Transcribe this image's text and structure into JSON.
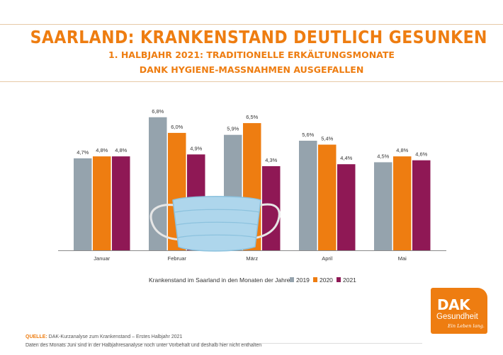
{
  "header": {
    "title": "SAARLAND: KRANKENSTAND DEUTLICH GESUNKEN",
    "subtitle_line1": "1. HALBJAHR 2021: TRADITIONELLE ERKÄLTUNGSMONATE",
    "subtitle_line2": "DANK HYGIENE-MASSNAHMEN AUSGEFALLEN"
  },
  "colors": {
    "accent": "#ee7d11",
    "series_2019": "#95a3ad",
    "series_2020": "#ee7d11",
    "series_2021": "#8f1855",
    "mask": "#aed6ec"
  },
  "chart_data": {
    "type": "bar",
    "categories": [
      "Januar",
      "Februar",
      "März",
      "April",
      "Mai"
    ],
    "series": [
      {
        "name": "2019",
        "values": [
          4.7,
          6.8,
          5.9,
          5.6,
          4.5
        ],
        "labels": [
          "4,7%",
          "6,8%",
          "5,9%",
          "5,6%",
          "4,5%"
        ]
      },
      {
        "name": "2020",
        "values": [
          4.8,
          6.0,
          6.5,
          5.4,
          4.8
        ],
        "labels": [
          "4,8%",
          "6,0%",
          "6,5%",
          "5,4%",
          "4,8%"
        ]
      },
      {
        "name": "2021",
        "values": [
          4.8,
          4.9,
          4.3,
          4.4,
          4.6
        ],
        "labels": [
          "4,8%",
          "4,9%",
          "4,3%",
          "4,4%",
          "4,6%"
        ]
      }
    ],
    "legend_title": "Krankenstand im Saarland in den Monaten der Jahre",
    "legend_placement": "bottom",
    "ylim": [
      0,
      7
    ],
    "grid": false,
    "decoration_icon": "face-mask-icon"
  },
  "footer": {
    "source_label": "QUELLE:",
    "source_text": " DAK-Kurzanalyse zum Krankenstand – Erstes Halbjahr 2021",
    "note": "Daten des Monats Juni sind in der Halbjahresanalyse noch unter Vorbehalt und deshalb hier nicht enthalten"
  },
  "logo": {
    "brand": "DAK",
    "name": "Gesundheit",
    "tagline": "Ein Leben lang."
  }
}
